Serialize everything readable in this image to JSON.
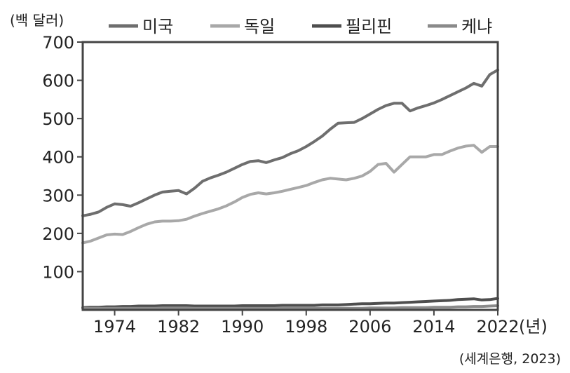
{
  "chart_data": {
    "type": "line",
    "y_unit": "(백 달러)",
    "x_unit": "(년)",
    "source": "(세계은행, 2023)",
    "ylim": [
      0,
      700
    ],
    "y_ticks": [
      100,
      200,
      300,
      400,
      500,
      600,
      700
    ],
    "xlim": [
      1970,
      2022
    ],
    "x_ticks": [
      1974,
      1982,
      1990,
      1998,
      2006,
      2014,
      2022
    ],
    "grid": false,
    "legend_position": "top",
    "x": [
      1970,
      1971,
      1972,
      1973,
      1974,
      1975,
      1976,
      1977,
      1978,
      1979,
      1980,
      1981,
      1982,
      1983,
      1984,
      1985,
      1986,
      1987,
      1988,
      1989,
      1990,
      1991,
      1992,
      1993,
      1994,
      1995,
      1996,
      1997,
      1998,
      1999,
      2000,
      2001,
      2002,
      2003,
      2004,
      2005,
      2006,
      2007,
      2008,
      2009,
      2010,
      2011,
      2012,
      2013,
      2014,
      2015,
      2016,
      2017,
      2018,
      2019,
      2020,
      2021,
      2022
    ],
    "series": [
      {
        "name": "미국",
        "color": "#6e6e6e",
        "values": [
          246,
          250,
          256,
          268,
          277,
          275,
          271,
          280,
          290,
          300,
          308,
          310,
          312,
          303,
          318,
          336,
          345,
          352,
          360,
          370,
          380,
          388,
          390,
          385,
          392,
          398,
          408,
          416,
          427,
          440,
          454,
          472,
          488,
          489,
          490,
          500,
          512,
          524,
          534,
          540,
          540,
          520,
          528,
          534,
          541,
          550,
          560,
          570,
          580,
          592,
          585,
          615,
          627
        ]
      },
      {
        "name": "독일",
        "color": "#a8a8a8",
        "values": [
          175,
          180,
          188,
          196,
          198,
          197,
          205,
          215,
          224,
          230,
          232,
          232,
          233,
          237,
          245,
          252,
          258,
          264,
          272,
          282,
          294,
          302,
          306,
          303,
          306,
          310,
          315,
          320,
          325,
          333,
          340,
          344,
          342,
          340,
          344,
          350,
          362,
          380,
          383,
          360,
          380,
          400,
          400,
          400,
          406,
          406,
          415,
          423,
          428,
          430,
          412,
          427,
          427
        ]
      },
      {
        "name": "필리핀",
        "color": "#4e4e4e",
        "values": [
          6,
          7,
          7,
          8,
          8,
          9,
          9,
          10,
          10,
          10,
          11,
          11,
          11,
          11,
          10,
          10,
          10,
          10,
          10,
          10,
          11,
          11,
          11,
          11,
          11,
          12,
          12,
          12,
          12,
          12,
          13,
          13,
          13,
          14,
          15,
          16,
          16,
          17,
          18,
          18,
          19,
          20,
          21,
          22,
          23,
          24,
          25,
          27,
          28,
          29,
          26,
          27,
          30
        ]
      },
      {
        "name": "케냐",
        "color": "#8a8a8a",
        "values": [
          4,
          4,
          4,
          4,
          4,
          4,
          4,
          4,
          4,
          4,
          5,
          5,
          5,
          5,
          4,
          4,
          4,
          4,
          4,
          4,
          4,
          4,
          4,
          4,
          4,
          4,
          4,
          4,
          4,
          4,
          4,
          4,
          4,
          4,
          4,
          4,
          5,
          5,
          5,
          5,
          6,
          6,
          6,
          6,
          7,
          7,
          7,
          8,
          8,
          9,
          9,
          10,
          11
        ]
      }
    ]
  }
}
